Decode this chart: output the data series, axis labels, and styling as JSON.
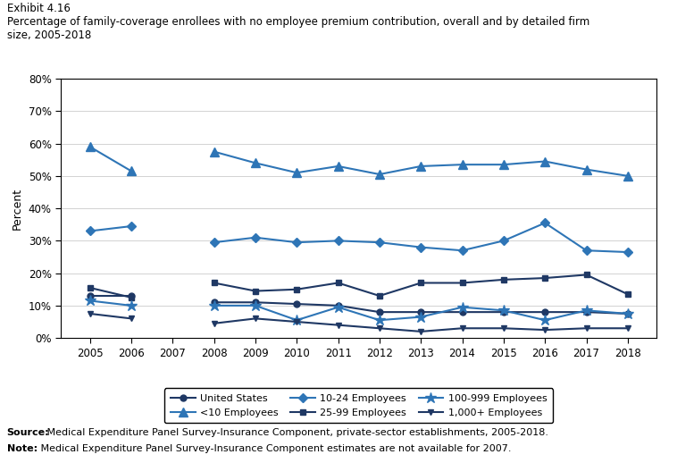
{
  "years": [
    2005,
    2006,
    2007,
    2008,
    2009,
    2010,
    2011,
    2012,
    2013,
    2014,
    2015,
    2016,
    2017,
    2018
  ],
  "series": [
    {
      "name": "United States",
      "values": [
        0.13,
        0.13,
        null,
        0.11,
        0.11,
        0.105,
        0.1,
        0.08,
        0.08,
        0.08,
        0.08,
        0.08,
        0.08,
        0.075
      ],
      "color": "#1f3864",
      "marker": "o",
      "linewidth": 1.5,
      "markersize": 5
    },
    {
      "name": "<10 Employees",
      "values": [
        0.59,
        0.515,
        null,
        0.575,
        0.54,
        0.51,
        0.53,
        0.505,
        0.53,
        0.535,
        0.535,
        0.545,
        0.52,
        0.5
      ],
      "color": "#2e75b6",
      "marker": "^",
      "linewidth": 1.5,
      "markersize": 7
    },
    {
      "name": "10-24 Employees",
      "values": [
        0.33,
        0.345,
        null,
        0.295,
        0.31,
        0.295,
        0.3,
        0.295,
        0.28,
        0.27,
        0.3,
        0.355,
        0.27,
        0.265
      ],
      "color": "#2e75b6",
      "marker": "D",
      "linewidth": 1.5,
      "markersize": 5
    },
    {
      "name": "25-99 Employees",
      "values": [
        0.155,
        0.125,
        null,
        0.17,
        0.145,
        0.15,
        0.17,
        0.13,
        0.17,
        0.17,
        0.18,
        0.185,
        0.195,
        0.135
      ],
      "color": "#1f3864",
      "marker": "s",
      "linewidth": 1.5,
      "markersize": 5
    },
    {
      "name": "100-999 Employees",
      "values": [
        0.115,
        0.1,
        null,
        0.1,
        0.1,
        0.055,
        0.095,
        0.055,
        0.065,
        0.095,
        0.085,
        0.055,
        0.085,
        0.075
      ],
      "color": "#2e75b6",
      "marker": "*",
      "linewidth": 1.5,
      "markersize": 9
    },
    {
      "name": "1,000+ Employees",
      "values": [
        0.075,
        0.06,
        null,
        0.045,
        0.06,
        0.05,
        0.04,
        0.03,
        0.02,
        0.03,
        0.03,
        0.025,
        0.03,
        0.03
      ],
      "color": "#1f3864",
      "marker": "v",
      "linewidth": 1.5,
      "markersize": 5
    }
  ],
  "ylim": [
    0.0,
    0.8
  ],
  "yticks": [
    0.0,
    0.1,
    0.2,
    0.3,
    0.4,
    0.5,
    0.6,
    0.7,
    0.8
  ],
  "ylabel": "Percent",
  "exhibit_title": "Exhibit 4.16",
  "chart_title": "Percentage of family-coverage enrollees with no employee premium contribution, overall and by detailed firm\nsize, 2005-2018",
  "source_label": "Source:",
  "source_text": " Medical Expenditure Panel Survey-Insurance Component, private-sector establishments, 2005-2018.",
  "note_label": "Note:",
  "note_text": " Medical Expenditure Panel Survey-Insurance Component estimates are not available for 2007.",
  "bg_color": "#ffffff"
}
